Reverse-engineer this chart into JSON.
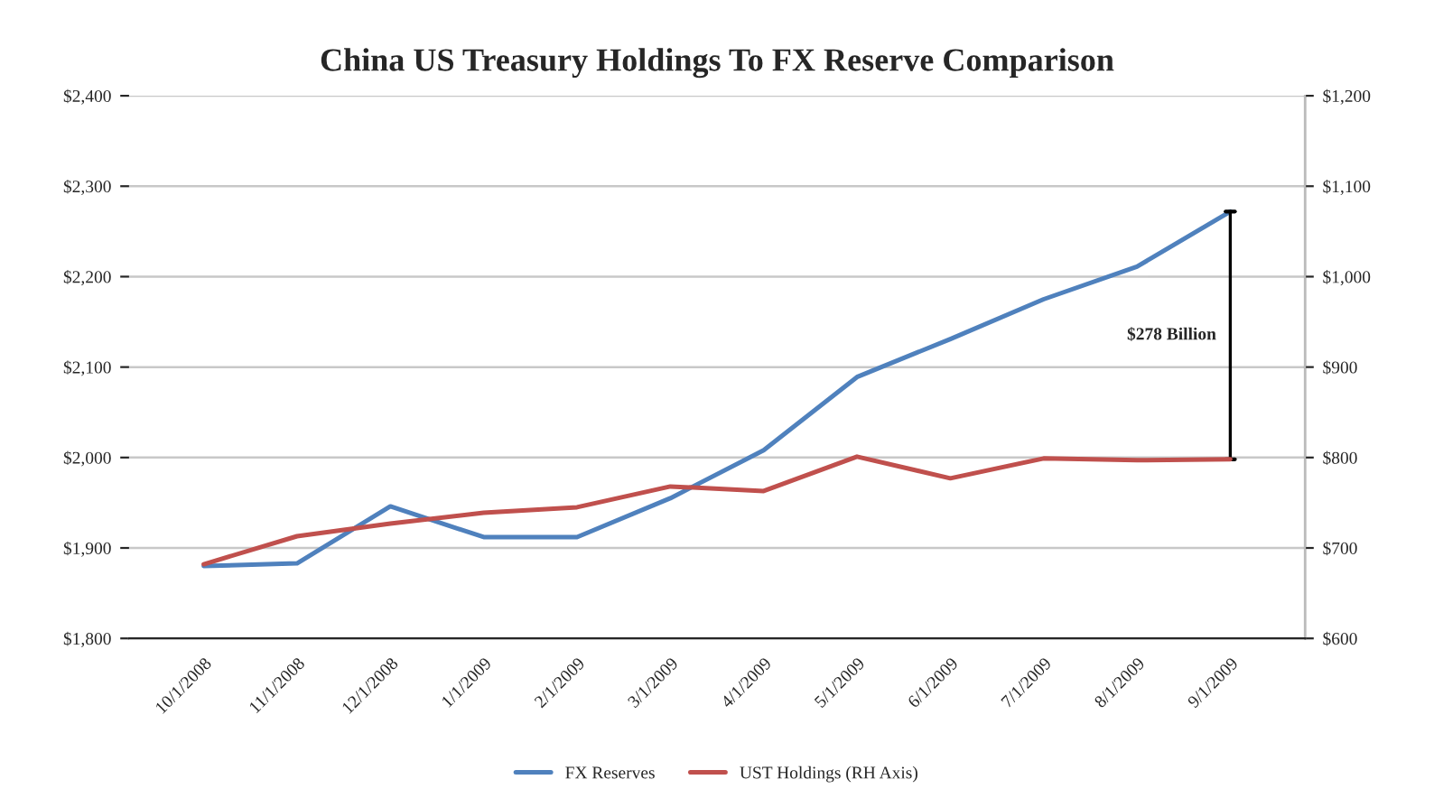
{
  "chart_data": {
    "type": "line",
    "title": "China US Treasury Holdings To FX Reserve Comparison",
    "categories": [
      "10/1/2008",
      "11/1/2008",
      "12/1/2008",
      "1/1/2009",
      "2/1/2009",
      "3/1/2009",
      "4/1/2009",
      "5/1/2009",
      "6/1/2009",
      "7/1/2009",
      "8/1/2009",
      "9/1/2009"
    ],
    "series": [
      {
        "name": "FX Reserves",
        "color": "#4f81bd",
        "values": [
          1880,
          1883,
          1946,
          1912,
          1912,
          1955,
          2008,
          2089,
          2131,
          2175,
          2211,
          2272
        ]
      },
      {
        "name": "UST Holdings (RH Axis)",
        "color": "#c0504d",
        "axis": "y2",
        "values": [
          682,
          713,
          727,
          739,
          745,
          768,
          763,
          801,
          777,
          799,
          797,
          798
        ]
      }
    ],
    "ylim": [
      1800,
      2400
    ],
    "yticks": [
      {
        "value": 1800,
        "label": "$1,800"
      },
      {
        "value": 1900,
        "label": "$1,900"
      },
      {
        "value": 2000,
        "label": "$2,000"
      },
      {
        "value": 2100,
        "label": "$2,100"
      },
      {
        "value": 2200,
        "label": "$2,200"
      },
      {
        "value": 2300,
        "label": "$2,300"
      },
      {
        "value": 2400,
        "label": "$2,400"
      }
    ],
    "y2lim": [
      600,
      1200
    ],
    "y2ticks": [
      {
        "value": 600,
        "label": "$600"
      },
      {
        "value": 700,
        "label": "$700"
      },
      {
        "value": 800,
        "label": "$800"
      },
      {
        "value": 900,
        "label": "$900"
      },
      {
        "value": 1000,
        "label": "$1,000"
      },
      {
        "value": 1100,
        "label": "$1,100"
      },
      {
        "value": 1200,
        "label": "$1,200"
      }
    ],
    "annotations": [
      "$278 Billion"
    ],
    "grid": "y",
    "legend": "bottom",
    "marker": "none",
    "line_style": "solid"
  }
}
